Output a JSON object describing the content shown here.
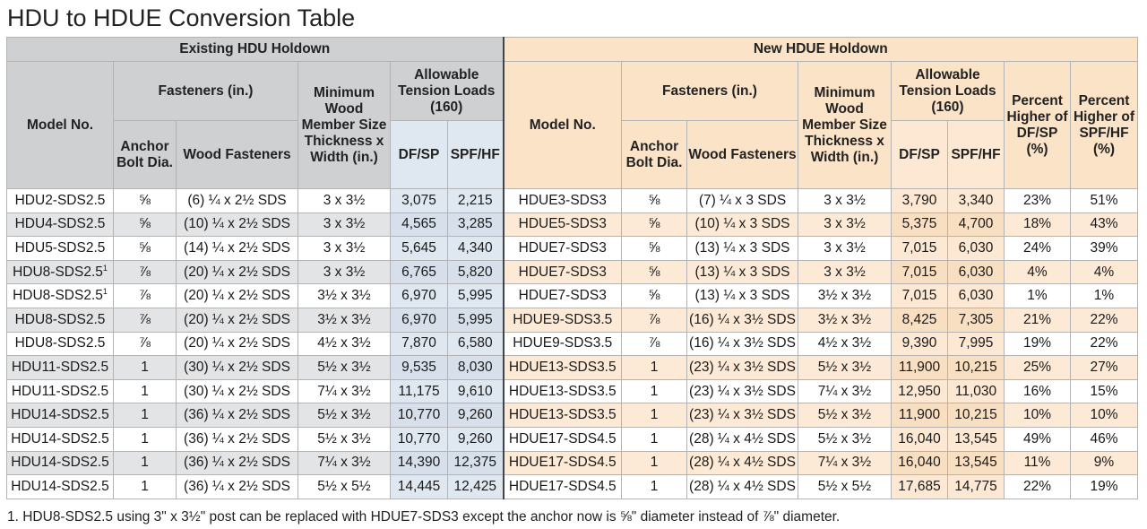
{
  "title": "HDU to HDUE Conversion Table",
  "groups": {
    "existing": "Existing HDU Holdown",
    "new": "New HDUE Holdown"
  },
  "headers": {
    "model_no": "Model No.",
    "fasteners": "Fasteners (in.)",
    "anchor_bolt": "Anchor Bolt Dia.",
    "wood_fasteners": "Wood Fasteners",
    "min_wood": "Minimum Wood Member Size Thickness x Width (in.)",
    "allowable": "Allowable Tension Loads (160)",
    "dfsp": "DF/SP",
    "spfhf": "SPF/HF",
    "pct_dfsp": "Percent Higher of DF/SP (%)",
    "pct_spfhf": "Percent Higher of SPF/HF (%)"
  },
  "rows": [
    {
      "old_model": "HDU2-SDS2.5",
      "old_sup": "",
      "old_anchor": "⅝",
      "old_fast": "(6) ¼ x 2½ SDS",
      "old_size": "3 x 3½",
      "old_dfsp": "3,075",
      "old_spfhf": "2,215",
      "new_model": "HDUE3-SDS3",
      "new_anchor": "⅝",
      "new_fast": "(7) ¼ x 3 SDS",
      "new_size": "3 x 3½",
      "new_dfsp": "3,790",
      "new_spfhf": "3,340",
      "pct_dfsp": "23%",
      "pct_spfhf": "51%"
    },
    {
      "old_model": "HDU4-SDS2.5",
      "old_sup": "",
      "old_anchor": "⅝",
      "old_fast": "(10) ¼ x 2½ SDS",
      "old_size": "3 x 3½",
      "old_dfsp": "4,565",
      "old_spfhf": "3,285",
      "new_model": "HDUE5-SDS3",
      "new_anchor": "⅝",
      "new_fast": "(10) ¼ x 3 SDS",
      "new_size": "3 x 3½",
      "new_dfsp": "5,375",
      "new_spfhf": "4,700",
      "pct_dfsp": "18%",
      "pct_spfhf": "43%"
    },
    {
      "old_model": "HDU5-SDS2.5",
      "old_sup": "",
      "old_anchor": "⅝",
      "old_fast": "(14) ¼ x 2½ SDS",
      "old_size": "3 x 3½",
      "old_dfsp": "5,645",
      "old_spfhf": "4,340",
      "new_model": "HDUE7-SDS3",
      "new_anchor": "⅝",
      "new_fast": "(13) ¼ x 3 SDS",
      "new_size": "3 x 3½",
      "new_dfsp": "7,015",
      "new_spfhf": "6,030",
      "pct_dfsp": "24%",
      "pct_spfhf": "39%"
    },
    {
      "old_model": "HDU8-SDS2.5",
      "old_sup": "1",
      "old_anchor": "⅞",
      "old_fast": "(20) ¼ x 2½ SDS",
      "old_size": "3 x 3½",
      "old_dfsp": "6,765",
      "old_spfhf": "5,820",
      "new_model": "HDUE7-SDS3",
      "new_anchor": "⅝",
      "new_fast": "(13) ¼ x 3 SDS",
      "new_size": "3 x 3½",
      "new_dfsp": "7,015",
      "new_spfhf": "6,030",
      "pct_dfsp": "4%",
      "pct_spfhf": "4%"
    },
    {
      "old_model": "HDU8-SDS2.5",
      "old_sup": "1",
      "old_anchor": "⅞",
      "old_fast": "(20) ¼ x 2½ SDS",
      "old_size": "3½ x 3½",
      "old_dfsp": "6,970",
      "old_spfhf": "5,995",
      "new_model": "HDUE7-SDS3",
      "new_anchor": "⅝",
      "new_fast": "(13) ¼ x 3 SDS",
      "new_size": "3½ x 3½",
      "new_dfsp": "7,015",
      "new_spfhf": "6,030",
      "pct_dfsp": "1%",
      "pct_spfhf": "1%"
    },
    {
      "old_model": "HDU8-SDS2.5",
      "old_sup": "",
      "old_anchor": "⅞",
      "old_fast": "(20) ¼ x 2½ SDS",
      "old_size": "3½ x 3½",
      "old_dfsp": "6,970",
      "old_spfhf": "5,995",
      "new_model": "HDUE9-SDS3.5",
      "new_anchor": "⅞",
      "new_fast": "(16) ¼ x 3½ SDS",
      "new_size": "3½ x 3½",
      "new_dfsp": "8,425",
      "new_spfhf": "7,305",
      "pct_dfsp": "21%",
      "pct_spfhf": "22%"
    },
    {
      "old_model": "HDU8-SDS2.5",
      "old_sup": "",
      "old_anchor": "⅞",
      "old_fast": "(20) ¼ x 2½ SDS",
      "old_size": "4½ x 3½",
      "old_dfsp": "7,870",
      "old_spfhf": "6,580",
      "new_model": "HDUE9-SDS3.5",
      "new_anchor": "⅞",
      "new_fast": "(16) ¼ x 3½ SDS",
      "new_size": "4½ x 3½",
      "new_dfsp": "9,390",
      "new_spfhf": "7,995",
      "pct_dfsp": "19%",
      "pct_spfhf": "22%"
    },
    {
      "old_model": "HDU11-SDS2.5",
      "old_sup": "",
      "old_anchor": "1",
      "old_fast": "(30) ¼ x 2½ SDS",
      "old_size": "5½ x 3½",
      "old_dfsp": "9,535",
      "old_spfhf": "8,030",
      "new_model": "HDUE13-SDS3.5",
      "new_anchor": "1",
      "new_fast": "(23) ¼ x 3½ SDS",
      "new_size": "5½ x 3½",
      "new_dfsp": "11,900",
      "new_spfhf": "10,215",
      "pct_dfsp": "25%",
      "pct_spfhf": "27%"
    },
    {
      "old_model": "HDU11-SDS2.5",
      "old_sup": "",
      "old_anchor": "1",
      "old_fast": "(30) ¼ x 2½ SDS",
      "old_size": "7¼ x 3½",
      "old_dfsp": "11,175",
      "old_spfhf": "9,610",
      "new_model": "HDUE13-SDS3.5",
      "new_anchor": "1",
      "new_fast": "(23) ¼ x 3½ SDS",
      "new_size": "7¼ x 3½",
      "new_dfsp": "12,950",
      "new_spfhf": "11,030",
      "pct_dfsp": "16%",
      "pct_spfhf": "15%"
    },
    {
      "old_model": "HDU14-SDS2.5",
      "old_sup": "",
      "old_anchor": "1",
      "old_fast": "(36) ¼ x 2½ SDS",
      "old_size": "5½ x 3½",
      "old_dfsp": "10,770",
      "old_spfhf": "9,260",
      "new_model": "HDUE13-SDS3.5",
      "new_anchor": "1",
      "new_fast": "(23) ¼ x 3½ SDS",
      "new_size": "5½ x 3½",
      "new_dfsp": "11,900",
      "new_spfhf": "10,215",
      "pct_dfsp": "10%",
      "pct_spfhf": "10%"
    },
    {
      "old_model": "HDU14-SDS2.5",
      "old_sup": "",
      "old_anchor": "1",
      "old_fast": "(36) ¼ x 2½ SDS",
      "old_size": "5½ x 3½",
      "old_dfsp": "10,770",
      "old_spfhf": "9,260",
      "new_model": "HDUE17-SDS4.5",
      "new_anchor": "1",
      "new_fast": "(28) ¼ x 4½ SDS",
      "new_size": "5½ x 3½",
      "new_dfsp": "16,040",
      "new_spfhf": "13,545",
      "pct_dfsp": "49%",
      "pct_spfhf": "46%"
    },
    {
      "old_model": "HDU14-SDS2.5",
      "old_sup": "",
      "old_anchor": "1",
      "old_fast": "(36) ¼ x 2½ SDS",
      "old_size": "7¼ x 3½",
      "old_dfsp": "14,390",
      "old_spfhf": "12,375",
      "new_model": "HDUE17-SDS4.5",
      "new_anchor": "1",
      "new_fast": "(28) ¼ x 4½ SDS",
      "new_size": "7¼ x 3½",
      "new_dfsp": "16,040",
      "new_spfhf": "13,545",
      "pct_dfsp": "11%",
      "pct_spfhf": "9%"
    },
    {
      "old_model": "HDU14-SDS2.5",
      "old_sup": "",
      "old_anchor": "1",
      "old_fast": "(36) ¼ x 2½ SDS",
      "old_size": "5½ x 5½",
      "old_dfsp": "14,445",
      "old_spfhf": "12,425",
      "new_model": "HDUE17-SDS4.5",
      "new_anchor": "1",
      "new_fast": "(28) ¼ x 4½ SDS",
      "new_size": "5½ x 5½",
      "new_dfsp": "17,685",
      "new_spfhf": "14,775",
      "pct_dfsp": "22%",
      "pct_spfhf": "19%"
    }
  ],
  "footnote": "1. HDU8-SDS2.5 using 3\" x 3½\" post can be replaced with HDUE7-SDS3 except the anchor now is ⅝\" diameter instead of ⅞\" diameter."
}
